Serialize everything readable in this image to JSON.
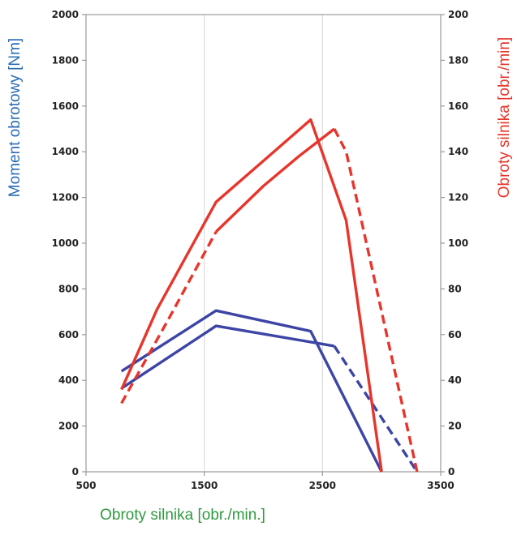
{
  "chart_data": {
    "type": "line",
    "xlabel": "Obroty silnika [obr./min.]",
    "ylabel_left": "Moment obrotowy [Nm]",
    "ylabel_right": "Obroty silnika [obr./min]",
    "xlim": [
      500,
      3500
    ],
    "ylim_left": [
      0,
      2000
    ],
    "ylim_right": [
      0,
      200
    ],
    "x_ticks": [
      500,
      1500,
      2500,
      3500
    ],
    "y_ticks_left": [
      0,
      200,
      400,
      600,
      800,
      1000,
      1200,
      1400,
      1600,
      1800,
      2000
    ],
    "y_ticks_right": [
      0,
      20,
      40,
      60,
      80,
      100,
      120,
      140,
      160,
      180,
      200
    ],
    "grid": "vertical",
    "colors": {
      "blue": "#3c44a5",
      "red": "#e8352b",
      "xlabel": "#2e9a3f",
      "ylabel_left": "#2a6db5",
      "ylabel_right": "#e8352b",
      "grid": "#d4d4d4",
      "axis": "#9a9a9a"
    },
    "series": [
      {
        "color": "blue",
        "dash": "solid",
        "axis": "left",
        "x": [
          800,
          1600,
          2400,
          3000
        ],
        "y": [
          440,
          705,
          615,
          0
        ]
      },
      {
        "color": "blue",
        "dash": "solid",
        "axis": "left",
        "x": [
          800,
          1600,
          2600
        ],
        "y": [
          365,
          638,
          550
        ]
      },
      {
        "color": "blue",
        "dash": "dashed",
        "axis": "left",
        "x": [
          2600,
          3300
        ],
        "y": [
          550,
          0
        ]
      },
      {
        "color": "red",
        "dash": "solid",
        "axis": "right",
        "x": [
          800,
          1100,
          1600,
          2000,
          2200,
          2400,
          2700,
          3000
        ],
        "y": [
          36,
          71,
          118,
          136,
          145,
          154,
          110,
          0
        ]
      },
      {
        "color": "red",
        "dash": "dashed",
        "axis": "right",
        "x": [
          800,
          1200,
          1600
        ],
        "y": [
          30,
          67,
          105
        ]
      },
      {
        "color": "red",
        "dash": "solid",
        "axis": "right",
        "x": [
          1600,
          2000,
          2300,
          2600
        ],
        "y": [
          105,
          125,
          138,
          150
        ]
      },
      {
        "color": "red",
        "dash": "dashed",
        "axis": "right",
        "x": [
          2600,
          2700,
          3000,
          3300
        ],
        "y": [
          150,
          140,
          70,
          0
        ]
      }
    ]
  }
}
